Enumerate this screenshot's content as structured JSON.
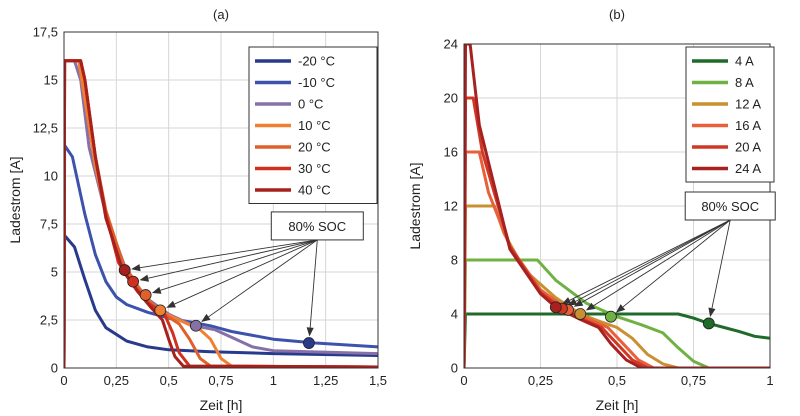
{
  "chart_data": [
    {
      "type": "line",
      "title": "(a)",
      "xlabel": "Zeit [h]",
      "ylabel": "Ladestrom [A]",
      "xlim": [
        0,
        1.5
      ],
      "ylim": [
        0,
        17.5
      ],
      "xticks": [
        0,
        0.25,
        0.5,
        0.75,
        1,
        1.25,
        1.5
      ],
      "xtick_labels": [
        "0",
        "0,25",
        "0,5",
        "0,75",
        "1",
        "1,25",
        "1,5"
      ],
      "yticks": [
        0,
        2.5,
        5,
        7.5,
        10,
        12.5,
        15,
        17.5
      ],
      "ytick_labels": [
        "0",
        "2,5",
        "5",
        "7,5",
        "10",
        "12,5",
        "15",
        "17,5"
      ],
      "grid": true,
      "legend_position": "top-right",
      "annotation": {
        "text": "80% SOC",
        "anchor": [
          1.21,
          7.4
        ]
      },
      "series": [
        {
          "name": "-20 °C",
          "color": "#283a8c",
          "points": [
            [
              0,
              0
            ],
            [
              0.003,
              6.9
            ],
            [
              0.05,
              6.3
            ],
            [
              0.1,
              4.6
            ],
            [
              0.15,
              3.0
            ],
            [
              0.2,
              2.1
            ],
            [
              0.3,
              1.4
            ],
            [
              0.4,
              1.1
            ],
            [
              0.5,
              0.95
            ],
            [
              0.7,
              0.85
            ],
            [
              1.0,
              0.75
            ],
            [
              1.5,
              0.65
            ]
          ],
          "soc_marker": [
            1.17,
            1.3
          ]
        },
        {
          "name": "-10 °C",
          "color": "#3c52ad",
          "points": [
            [
              0,
              0
            ],
            [
              0.003,
              11.6
            ],
            [
              0.04,
              11.0
            ],
            [
              0.1,
              8.0
            ],
            [
              0.15,
              5.9
            ],
            [
              0.2,
              4.5
            ],
            [
              0.25,
              3.7
            ],
            [
              0.3,
              3.3
            ],
            [
              0.4,
              2.9
            ],
            [
              0.5,
              2.6
            ],
            [
              0.6,
              2.4
            ],
            [
              0.7,
              2.2
            ],
            [
              0.8,
              1.9
            ],
            [
              1.0,
              1.5
            ],
            [
              1.2,
              1.3
            ],
            [
              1.5,
              1.1
            ]
          ],
          "soc_marker": null
        },
        {
          "name": "0 °C",
          "color": "#8670a8",
          "points": [
            [
              0,
              0
            ],
            [
              0.003,
              16
            ],
            [
              0.05,
              16
            ],
            [
              0.08,
              15
            ],
            [
              0.12,
              11.5
            ],
            [
              0.2,
              8
            ],
            [
              0.3,
              5
            ],
            [
              0.4,
              3.6
            ],
            [
              0.5,
              2.8
            ],
            [
              0.62,
              2.2
            ],
            [
              0.72,
              2.0
            ],
            [
              0.8,
              1.6
            ],
            [
              0.9,
              1.1
            ],
            [
              1.0,
              0.9
            ],
            [
              1.5,
              0.75
            ]
          ],
          "soc_marker": [
            0.63,
            2.2
          ]
        },
        {
          "name": "10 °C",
          "color": "#f08030",
          "points": [
            [
              0,
              0
            ],
            [
              0.003,
              16
            ],
            [
              0.07,
              16
            ],
            [
              0.1,
              14
            ],
            [
              0.15,
              10.5
            ],
            [
              0.2,
              8
            ],
            [
              0.28,
              5.5
            ],
            [
              0.35,
              4.2
            ],
            [
              0.45,
              3.0
            ],
            [
              0.55,
              2.5
            ],
            [
              0.65,
              2.0
            ],
            [
              0.7,
              1.5
            ],
            [
              0.75,
              0.5
            ],
            [
              0.8,
              0.1
            ],
            [
              1.5,
              0.05
            ]
          ],
          "soc_marker": [
            0.46,
            3.0
          ]
        },
        {
          "name": "20 °C",
          "color": "#e0602a",
          "points": [
            [
              0,
              0
            ],
            [
              0.003,
              16
            ],
            [
              0.08,
              16
            ],
            [
              0.1,
              15
            ],
            [
              0.15,
              11
            ],
            [
              0.2,
              8.2
            ],
            [
              0.28,
              5.5
            ],
            [
              0.38,
              3.8
            ],
            [
              0.45,
              3.0
            ],
            [
              0.55,
              2.3
            ],
            [
              0.6,
              1.5
            ],
            [
              0.65,
              0.5
            ],
            [
              0.7,
              0.1
            ],
            [
              1.5,
              0.05
            ]
          ],
          "soc_marker": [
            0.39,
            3.8
          ]
        },
        {
          "name": "30 °C",
          "color": "#d03020",
          "points": [
            [
              0,
              0
            ],
            [
              0.003,
              16
            ],
            [
              0.08,
              16
            ],
            [
              0.1,
              15
            ],
            [
              0.15,
              11
            ],
            [
              0.2,
              8
            ],
            [
              0.26,
              5.5
            ],
            [
              0.32,
              4.5
            ],
            [
              0.4,
              3.4
            ],
            [
              0.48,
              2.8
            ],
            [
              0.52,
              1.8
            ],
            [
              0.55,
              0.8
            ],
            [
              0.6,
              0.1
            ],
            [
              1.5,
              0.05
            ]
          ],
          "soc_marker": [
            0.33,
            4.5
          ]
        },
        {
          "name": "40 °C",
          "color": "#a8201c",
          "points": [
            [
              0,
              0
            ],
            [
              0.003,
              16
            ],
            [
              0.08,
              16
            ],
            [
              0.1,
              15
            ],
            [
              0.15,
              11
            ],
            [
              0.2,
              7.8
            ],
            [
              0.28,
              5.1
            ],
            [
              0.35,
              4.0
            ],
            [
              0.42,
              3.1
            ],
            [
              0.47,
              2.5
            ],
            [
              0.5,
              1.5
            ],
            [
              0.53,
              0.6
            ],
            [
              0.57,
              0.1
            ],
            [
              1.5,
              0.05
            ]
          ],
          "soc_marker": [
            0.29,
            5.1
          ]
        }
      ]
    },
    {
      "type": "line",
      "title": "(b)",
      "xlabel": "Zeit [h]",
      "ylabel": "Ladestrom [A]",
      "xlim": [
        0,
        1
      ],
      "ylim": [
        0,
        24
      ],
      "xticks": [
        0,
        0.25,
        0.5,
        0.75,
        1
      ],
      "xtick_labels": [
        "0",
        "0,25",
        "0,5",
        "0,75",
        "1"
      ],
      "yticks": [
        0,
        4,
        8,
        12,
        16,
        20,
        24
      ],
      "ytick_labels": [
        "0",
        "4",
        "8",
        "12",
        "16",
        "20",
        "24"
      ],
      "grid": true,
      "legend_position": "top-right",
      "annotation": {
        "text": "80% SOC",
        "anchor": [
          0.87,
          12
        ]
      },
      "series": [
        {
          "name": "4 A",
          "color": "#1f6b2a",
          "points": [
            [
              0,
              0
            ],
            [
              0.005,
              4
            ],
            [
              0.7,
              4
            ],
            [
              0.75,
              3.7
            ],
            [
              0.8,
              3.3
            ],
            [
              0.85,
              3.0
            ],
            [
              0.9,
              2.7
            ],
            [
              0.95,
              2.35
            ],
            [
              1.0,
              2.2
            ]
          ],
          "soc_marker": [
            0.8,
            3.3
          ]
        },
        {
          "name": "8 A",
          "color": "#6fb143",
          "points": [
            [
              0,
              0
            ],
            [
              0.005,
              8
            ],
            [
              0.24,
              8
            ],
            [
              0.3,
              6.5
            ],
            [
              0.4,
              4.8
            ],
            [
              0.5,
              3.8
            ],
            [
              0.58,
              3.2
            ],
            [
              0.65,
              2.6
            ],
            [
              0.7,
              1.5
            ],
            [
              0.75,
              0.5
            ],
            [
              0.8,
              0
            ],
            [
              1.0,
              0
            ]
          ],
          "soc_marker": [
            0.48,
            3.8
          ]
        },
        {
          "name": "12 A",
          "color": "#c89030",
          "points": [
            [
              0,
              0
            ],
            [
              0.005,
              12
            ],
            [
              0.1,
              12
            ],
            [
              0.13,
              10
            ],
            [
              0.2,
              7.2
            ],
            [
              0.3,
              5.2
            ],
            [
              0.38,
              4.0
            ],
            [
              0.45,
              3.4
            ],
            [
              0.5,
              3.0
            ],
            [
              0.55,
              2.2
            ],
            [
              0.6,
              1.0
            ],
            [
              0.65,
              0.3
            ],
            [
              0.7,
              0
            ],
            [
              1.0,
              0
            ]
          ],
          "soc_marker": [
            0.38,
            4.0
          ]
        },
        {
          "name": "16 A",
          "color": "#e8603a",
          "points": [
            [
              0,
              0
            ],
            [
              0.005,
              16
            ],
            [
              0.05,
              16
            ],
            [
              0.08,
              13
            ],
            [
              0.15,
              9
            ],
            [
              0.25,
              5.8
            ],
            [
              0.34,
              4.3
            ],
            [
              0.42,
              3.5
            ],
            [
              0.47,
              3.0
            ],
            [
              0.52,
              1.8
            ],
            [
              0.57,
              0.6
            ],
            [
              0.62,
              0
            ],
            [
              1.0,
              0
            ]
          ],
          "soc_marker": [
            0.34,
            4.3
          ]
        },
        {
          "name": "20 A",
          "color": "#d03826",
          "points": [
            [
              0,
              0
            ],
            [
              0.005,
              20
            ],
            [
              0.03,
              20
            ],
            [
              0.06,
              16
            ],
            [
              0.15,
              9
            ],
            [
              0.25,
              5.6
            ],
            [
              0.32,
              4.4
            ],
            [
              0.4,
              3.5
            ],
            [
              0.45,
              3.0
            ],
            [
              0.5,
              1.8
            ],
            [
              0.55,
              0.6
            ],
            [
              0.6,
              0
            ],
            [
              1.0,
              0
            ]
          ],
          "soc_marker": [
            0.32,
            4.4
          ]
        },
        {
          "name": "24 A",
          "color": "#a82020",
          "points": [
            [
              0,
              0
            ],
            [
              0.005,
              24
            ],
            [
              0.02,
              24
            ],
            [
              0.05,
              18
            ],
            [
              0.15,
              8.8
            ],
            [
              0.25,
              5.5
            ],
            [
              0.3,
              4.5
            ],
            [
              0.38,
              3.6
            ],
            [
              0.44,
              3.0
            ],
            [
              0.48,
              1.8
            ],
            [
              0.53,
              0.6
            ],
            [
              0.58,
              0
            ],
            [
              1.0,
              0
            ]
          ],
          "soc_marker": [
            0.3,
            4.5
          ]
        }
      ]
    }
  ]
}
